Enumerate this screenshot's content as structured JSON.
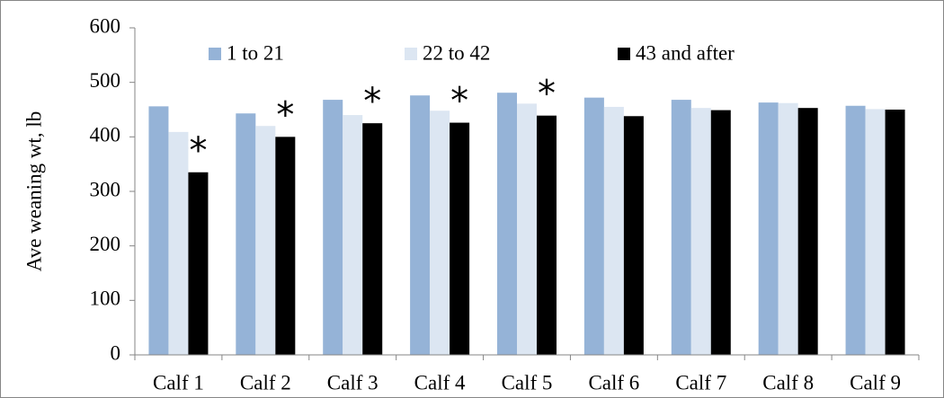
{
  "chart_data": {
    "type": "bar",
    "y_label": "Ave weaning wt, lb",
    "categories": [
      "Calf 1",
      "Calf 2",
      "Calf 3",
      "Calf 4",
      "Calf 5",
      "Calf 6",
      "Calf 7",
      "Calf 8",
      "Calf 9"
    ],
    "series": [
      {
        "name": "1 to 21",
        "color": "#95b3d7",
        "values": [
          456,
          443,
          468,
          476,
          481,
          472,
          468,
          463,
          457
        ]
      },
      {
        "name": "22 to 42",
        "color": "#dce6f2",
        "values": [
          409,
          420,
          440,
          448,
          461,
          455,
          453,
          462,
          451
        ]
      },
      {
        "name": "43 and after",
        "color": "#000000",
        "values": [
          335,
          400,
          425,
          426,
          439,
          438,
          449,
          453,
          450
        ]
      }
    ],
    "significance": [
      "*",
      "*",
      "*",
      "*",
      "*",
      null,
      null,
      null,
      null
    ],
    "ylim": [
      0,
      600
    ],
    "yticks": [
      0,
      100,
      200,
      300,
      400,
      500,
      600
    ],
    "grid": false,
    "legend": "top"
  }
}
